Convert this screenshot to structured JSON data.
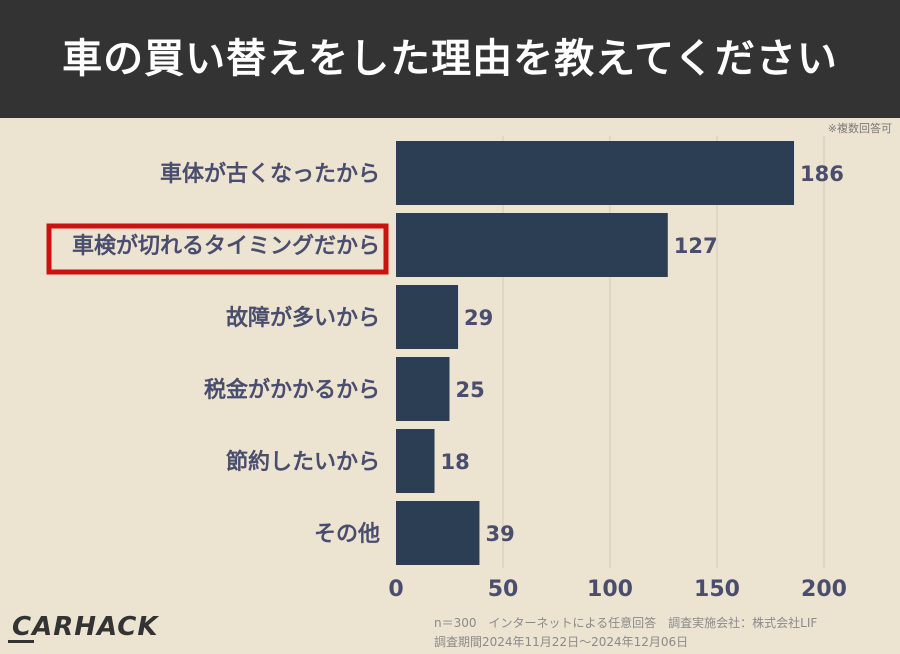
{
  "header": {
    "title": "車の買い替えをした理由を教えてください"
  },
  "note": "※複数回答可",
  "footer": {
    "line1": "n＝300　インターネットによる任意回答　調査実施会社：株式会社LIF",
    "line2": "調査期間2024年11月22日〜2024年12月06日"
  },
  "logo": {
    "text": "CARHACK"
  },
  "colors": {
    "header_bg": "#333333",
    "background": "#ece3d1",
    "bar": "#2c3e54",
    "label": "#4a4e6e",
    "highlight": "#cc1111"
  },
  "chart_data": {
    "type": "bar",
    "orientation": "horizontal",
    "categories": [
      "車体が古くなったから",
      "車検が切れるタイミングだから",
      "故障が多いから",
      "税金がかかるから",
      "節約したいから",
      "その他"
    ],
    "values": [
      186,
      127,
      29,
      25,
      18,
      39
    ],
    "xlim": [
      0,
      200
    ],
    "xticks": [
      0,
      50,
      100,
      150,
      200
    ],
    "highlight_index": 1,
    "grid": "vertical"
  }
}
